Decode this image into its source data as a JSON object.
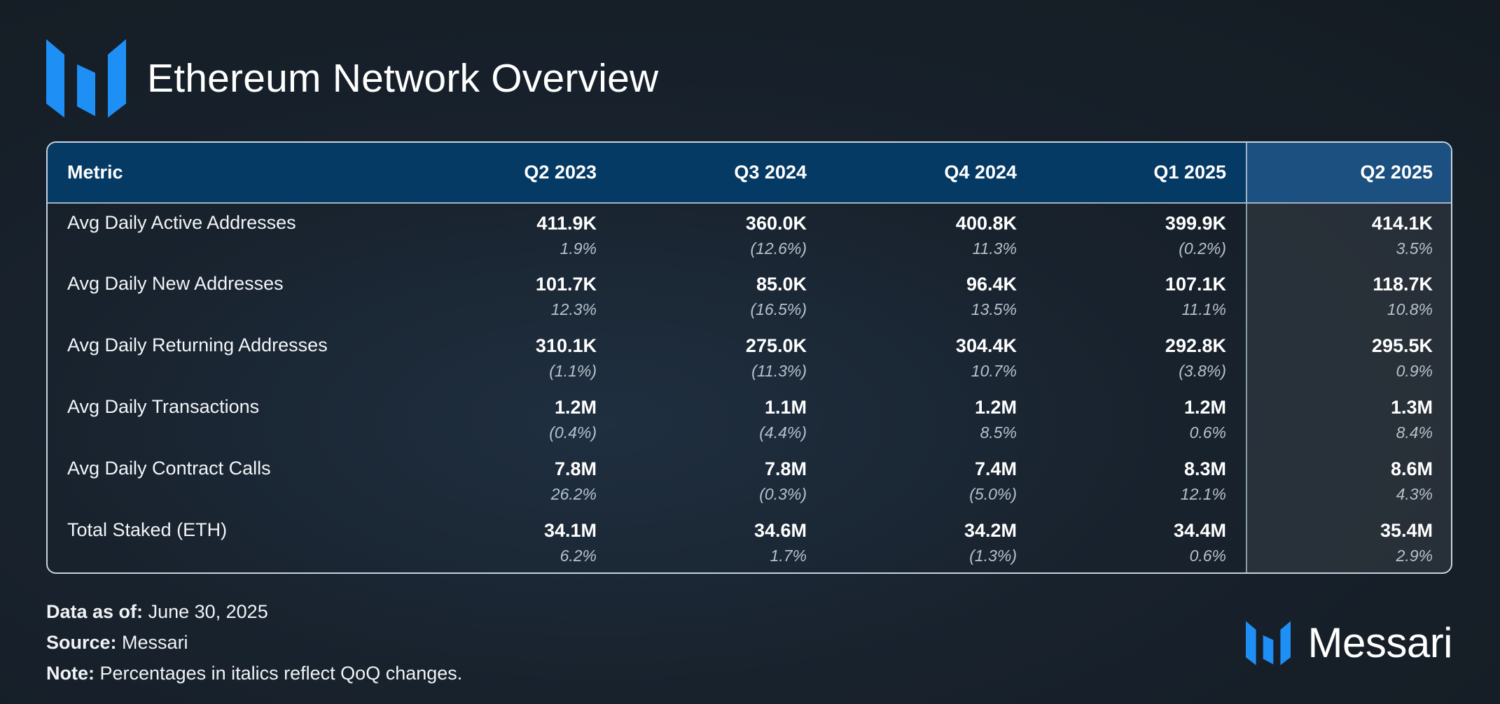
{
  "title": "Ethereum Network Overview",
  "colors": {
    "accent": "#1e8ff5",
    "header_bg": "#053a64",
    "highlight_col": "#1b5080"
  },
  "chart_data": {
    "type": "table",
    "title": "Ethereum Network Overview",
    "columns": [
      "Metric",
      "Q2 2023",
      "Q3 2024",
      "Q4 2024",
      "Q1 2025",
      "Q2 2025"
    ],
    "rows": [
      {
        "metric": "Avg Daily Active Addresses",
        "values": [
          "411.9K",
          "360.0K",
          "400.8K",
          "399.9K",
          "414.1K"
        ],
        "changes": [
          "1.9%",
          "(12.6%)",
          "11.3%",
          "(0.2%)",
          "3.5%"
        ]
      },
      {
        "metric": "Avg Daily New Addresses",
        "values": [
          "101.7K",
          "85.0K",
          "96.4K",
          "107.1K",
          "118.7K"
        ],
        "changes": [
          "12.3%",
          "(16.5%)",
          "13.5%",
          "11.1%",
          "10.8%"
        ]
      },
      {
        "metric": "Avg Daily Returning Addresses",
        "values": [
          "310.1K",
          "275.0K",
          "304.4K",
          "292.8K",
          "295.5K"
        ],
        "changes": [
          "(1.1%)",
          "(11.3%)",
          "10.7%",
          "(3.8%)",
          "0.9%"
        ]
      },
      {
        "metric": "Avg Daily Transactions",
        "values": [
          "1.2M",
          "1.1M",
          "1.2M",
          "1.2M",
          "1.3M"
        ],
        "changes": [
          "(0.4%)",
          "(4.4%)",
          "8.5%",
          "0.6%",
          "8.4%"
        ]
      },
      {
        "metric": "Avg Daily Contract Calls",
        "values": [
          "7.8M",
          "7.8M",
          "7.4M",
          "8.3M",
          "8.6M"
        ],
        "changes": [
          "26.2%",
          "(0.3%)",
          "(5.0%)",
          "12.1%",
          "4.3%"
        ]
      },
      {
        "metric": "Total Staked (ETH)",
        "values": [
          "34.1M",
          "34.6M",
          "34.2M",
          "34.4M",
          "35.4M"
        ],
        "changes": [
          "6.2%",
          "1.7%",
          "(1.3%)",
          "0.6%",
          "2.9%"
        ]
      }
    ],
    "highlighted_column": "Q2 2025"
  },
  "footer": {
    "date_label": "Data as of:",
    "date_value": "June 30, 2025",
    "source_label": "Source:",
    "source_value": "Messari",
    "note_label": "Note:",
    "note_value": "Percentages in italics reflect QoQ changes."
  },
  "brand": {
    "name": "Messari",
    "icon": "messari-logo-icon"
  }
}
